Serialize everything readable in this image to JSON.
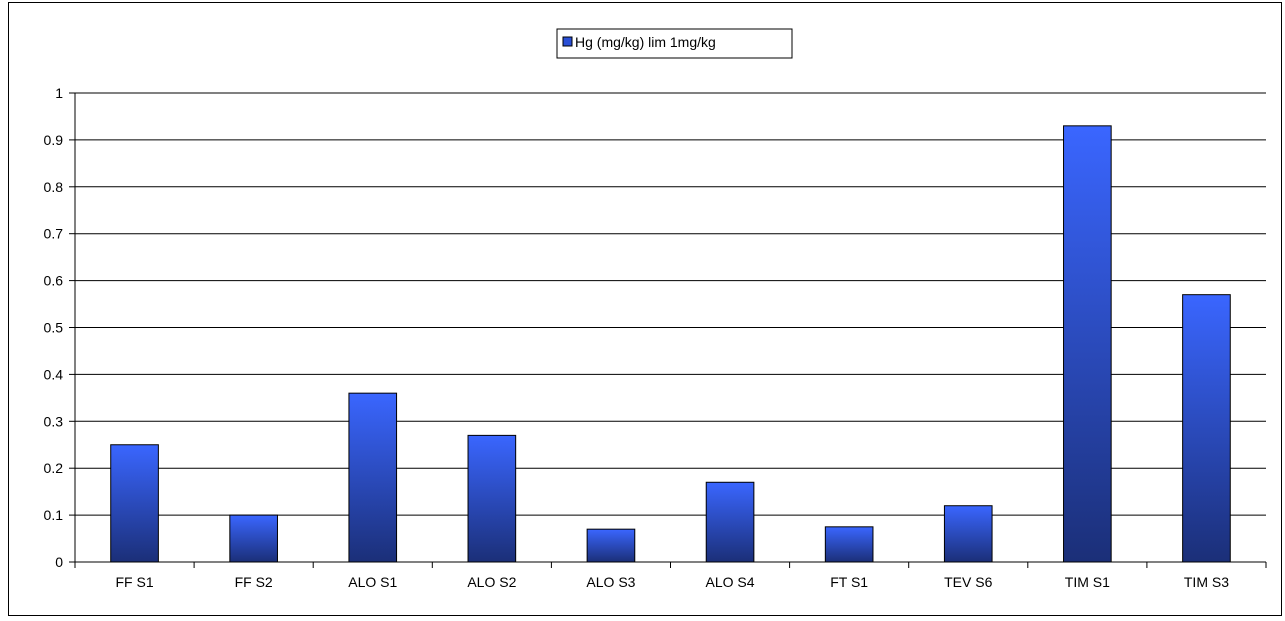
{
  "chart_data": {
    "type": "bar",
    "categories": [
      "FF S1",
      "FF S2",
      "ALO S1",
      "ALO S2",
      "ALO S3",
      "ALO S4",
      "FT S1",
      "TEV S6",
      "TIM S1",
      "TIM S3"
    ],
    "series": [
      {
        "name": "Hg (mg/kg) lim 1mg/kg",
        "values": [
          0.25,
          0.1,
          0.36,
          0.27,
          0.07,
          0.17,
          0.075,
          0.12,
          0.93,
          0.57
        ],
        "color_top": "#3a66ff",
        "color_bottom": "#1b2f78"
      }
    ],
    "title": "",
    "xlabel": "",
    "ylabel": "",
    "ylim": [
      0,
      1
    ],
    "yticks": [
      0,
      0.1,
      0.2,
      0.3,
      0.4,
      0.5,
      0.6,
      0.7,
      0.8,
      0.9,
      1
    ],
    "ytick_labels": [
      "0",
      "0.1",
      "0.2",
      "0.3",
      "0.4",
      "0.5",
      "0.6",
      "0.7",
      "0.8",
      "0.9",
      "1"
    ],
    "grid": true,
    "legend_position": "top-center"
  }
}
